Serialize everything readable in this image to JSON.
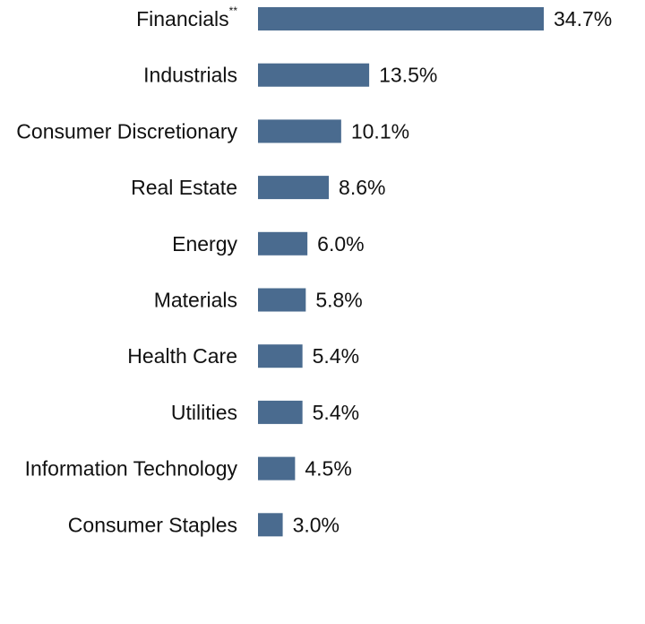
{
  "chart_data": {
    "type": "bar",
    "orientation": "horizontal",
    "categories": [
      "Financials",
      "Industrials",
      "Consumer Discretionary",
      "Real Estate",
      "Energy",
      "Materials",
      "Health Care",
      "Utilities",
      "Information Technology",
      "Consumer Staples"
    ],
    "category_footnotes": [
      "**",
      "",
      "",
      "",
      "",
      "",
      "",
      "",
      "",
      ""
    ],
    "values": [
      34.7,
      13.5,
      10.1,
      8.6,
      6.0,
      5.8,
      5.4,
      5.4,
      4.5,
      3.0
    ],
    "value_labels": [
      "34.7%",
      "13.5%",
      "10.1%",
      "8.6%",
      "6.0%",
      "5.8%",
      "5.4%",
      "5.4%",
      "4.5%",
      "3.0%"
    ],
    "title": "",
    "xlabel": "",
    "ylabel": "",
    "xlim": [
      0,
      34.7
    ],
    "grid": false,
    "legend": "none",
    "colors": {
      "bar": "#4a6b8f",
      "text": "#111111"
    }
  }
}
